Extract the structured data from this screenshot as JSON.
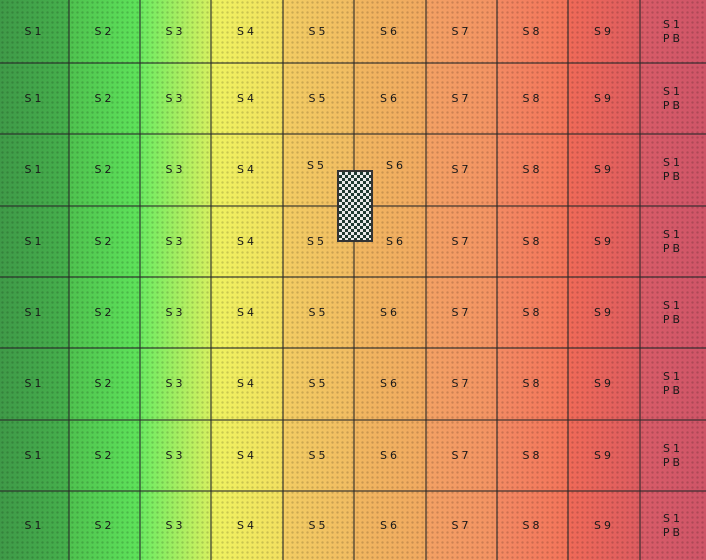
{
  "board": {
    "columns": [
      {
        "label": "S1",
        "color_left": "#3f9a48",
        "color_right": "#46b04c"
      },
      {
        "label": "S2",
        "color_left": "#4fc24f",
        "color_right": "#5ee35a"
      },
      {
        "label": "S3",
        "color_left": "#6cec62",
        "color_right": "#d6f160"
      },
      {
        "label": "S4",
        "color_left": "#eef360",
        "color_right": "#f3e060"
      },
      {
        "label": "S5",
        "color_left": "#f3cd63",
        "color_right": "#f1bc62"
      },
      {
        "label": "S6",
        "color_left": "#f1b760",
        "color_right": "#f1a960"
      },
      {
        "label": "S7",
        "color_left": "#f3a164",
        "color_right": "#f39263"
      },
      {
        "label": "S8",
        "color_left": "#f38a63",
        "color_right": "#f3745a"
      },
      {
        "label": "S9",
        "color_left": "#f06a58",
        "color_right": "#dd5c60"
      },
      {
        "label": "S1",
        "label_line2": "PB",
        "color_left": "#d85c68",
        "color_right": "#cf5568"
      }
    ],
    "row_count": 8,
    "split_cells": [
      {
        "row": 2,
        "col": 4,
        "label": "S5"
      },
      {
        "row": 2,
        "col": 5,
        "label": "S6"
      },
      {
        "row": 3,
        "col": 4,
        "label": "S5"
      },
      {
        "row": 3,
        "col": 5,
        "label": "S6"
      }
    ]
  },
  "piece": {
    "icon": "checkered-piece-icon",
    "pattern_color": "#1f3a32"
  }
}
